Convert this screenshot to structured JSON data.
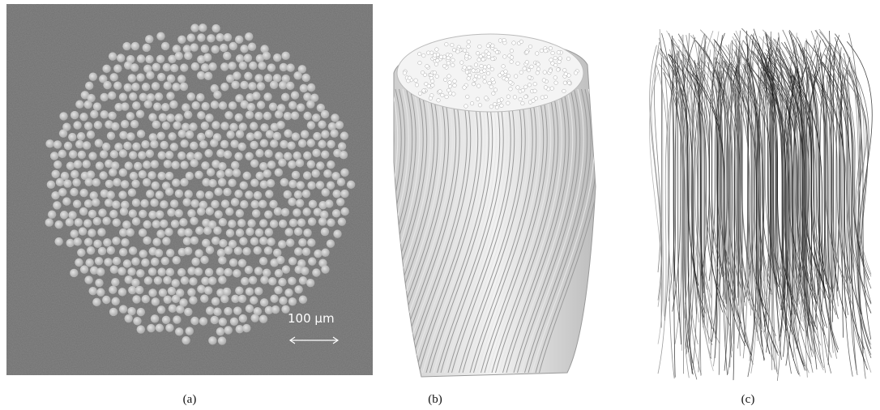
{
  "panels": [
    {
      "caption": "(a)",
      "scale_bar": "100 µm"
    },
    {
      "caption": "(b)"
    },
    {
      "caption": "(c)"
    }
  ]
}
